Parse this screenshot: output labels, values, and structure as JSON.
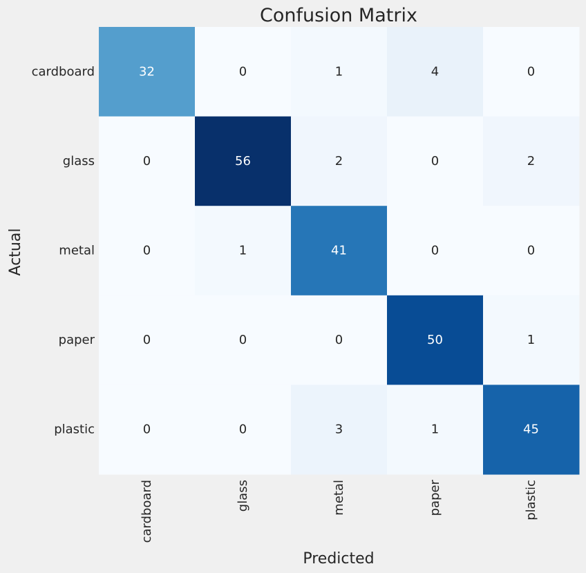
{
  "chart_data": {
    "type": "heatmap",
    "title": "Confusion Matrix",
    "xlabel": "Predicted",
    "ylabel": "Actual",
    "x_categories": [
      "cardboard",
      "glass",
      "metal",
      "paper",
      "plastic"
    ],
    "y_categories": [
      "cardboard",
      "glass",
      "metal",
      "paper",
      "plastic"
    ],
    "values": [
      [
        32,
        0,
        1,
        4,
        0
      ],
      [
        0,
        56,
        2,
        0,
        2
      ],
      [
        0,
        1,
        41,
        0,
        0
      ],
      [
        0,
        0,
        0,
        50,
        1
      ],
      [
        0,
        0,
        3,
        1,
        45
      ]
    ],
    "colormap": "Blues",
    "colorbar": false,
    "grid": false,
    "background_color": "#f0f0f0"
  }
}
